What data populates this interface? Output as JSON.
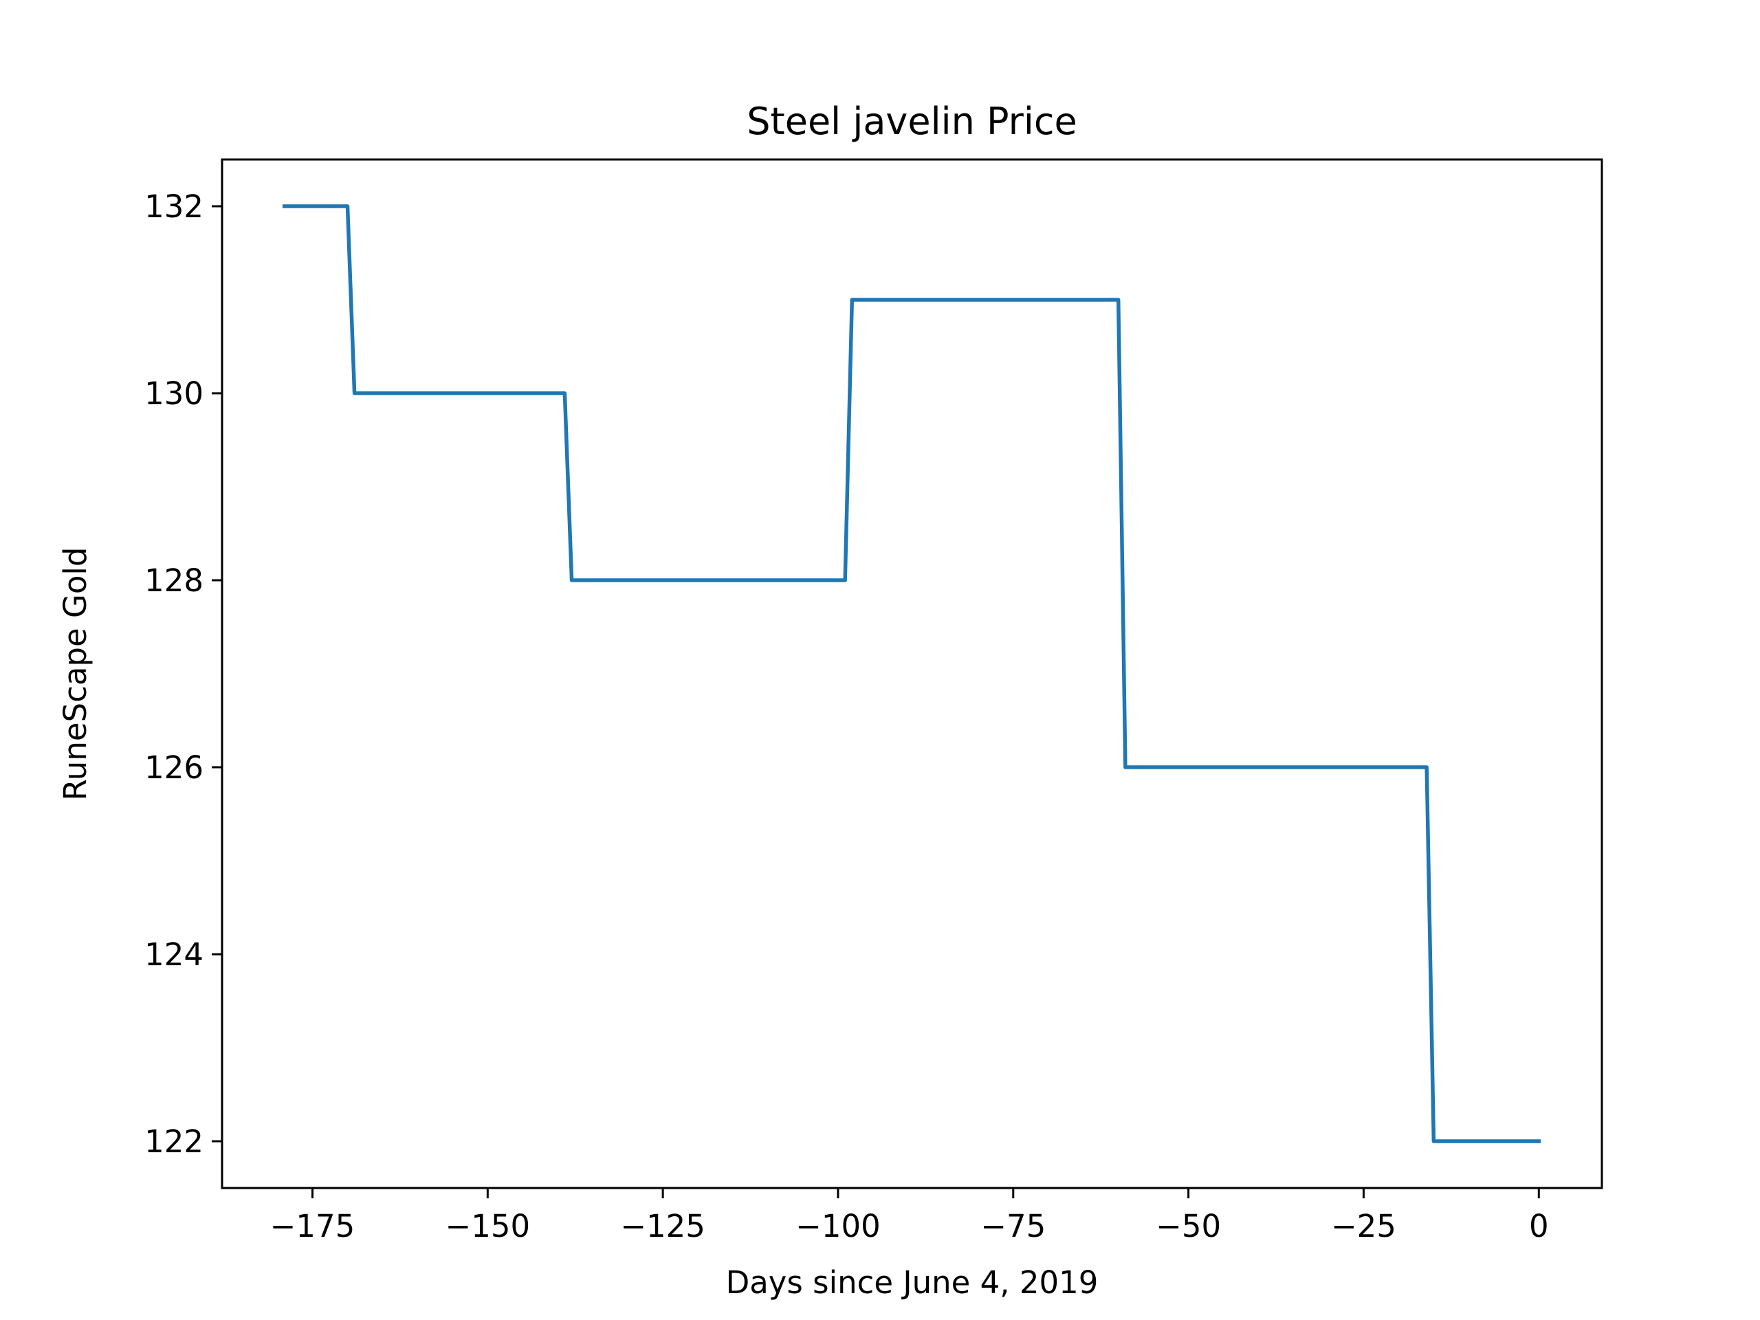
{
  "chart_data": {
    "type": "line",
    "title": "Steel javelin Price",
    "xlabel": "Days since June 4, 2019",
    "ylabel": "RuneScape Gold",
    "xlim": [
      -187.9,
      9.0
    ],
    "ylim": [
      121.5,
      132.5
    ],
    "xticks": [
      -175,
      -150,
      -125,
      -100,
      -75,
      -50,
      -25,
      0
    ],
    "xtick_labels": [
      "−175",
      "−150",
      "−125",
      "−100",
      "−75",
      "−50",
      "−25",
      "0"
    ],
    "yticks": [
      122,
      124,
      126,
      128,
      130,
      132
    ],
    "ytick_labels": [
      "122",
      "124",
      "126",
      "128",
      "130",
      "132"
    ],
    "grid": false,
    "series": [
      {
        "color": "#1f77b4",
        "x": [
          -179,
          -170,
          -169,
          -139,
          -138,
          -99,
          -98,
          -60,
          -59,
          -16,
          -15,
          0
        ],
        "y": [
          132,
          132,
          130,
          130,
          128,
          128,
          131,
          131,
          126,
          126,
          122,
          122
        ]
      }
    ]
  }
}
